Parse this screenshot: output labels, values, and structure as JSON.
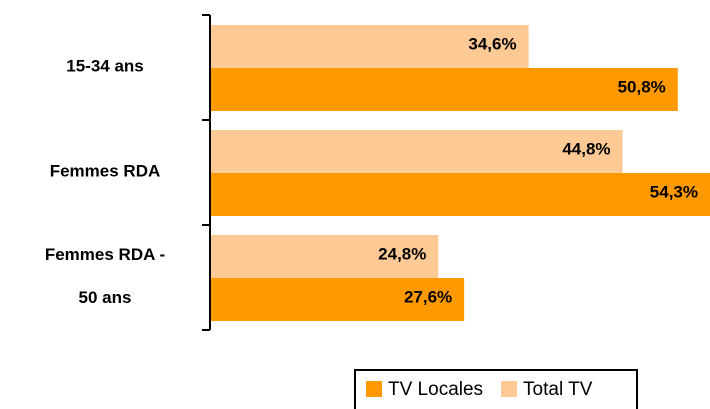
{
  "chart_data": {
    "type": "bar",
    "orientation": "horizontal",
    "categories": [
      "15-34 ans",
      "Femmes RDA",
      "Femmes RDA -\n50 ans"
    ],
    "series": [
      {
        "name": "TV Locales",
        "color": "#ff9900",
        "values": [
          50.8,
          54.3,
          27.6
        ],
        "value_labels": [
          "50,8%",
          "54,3%",
          "27,6%"
        ]
      },
      {
        "name": "Total TV",
        "color": "#fdca96",
        "values": [
          34.6,
          44.8,
          24.8
        ],
        "value_labels": [
          "34,6%",
          "44,8%",
          "24,8%"
        ]
      }
    ],
    "legend": "bottom"
  }
}
